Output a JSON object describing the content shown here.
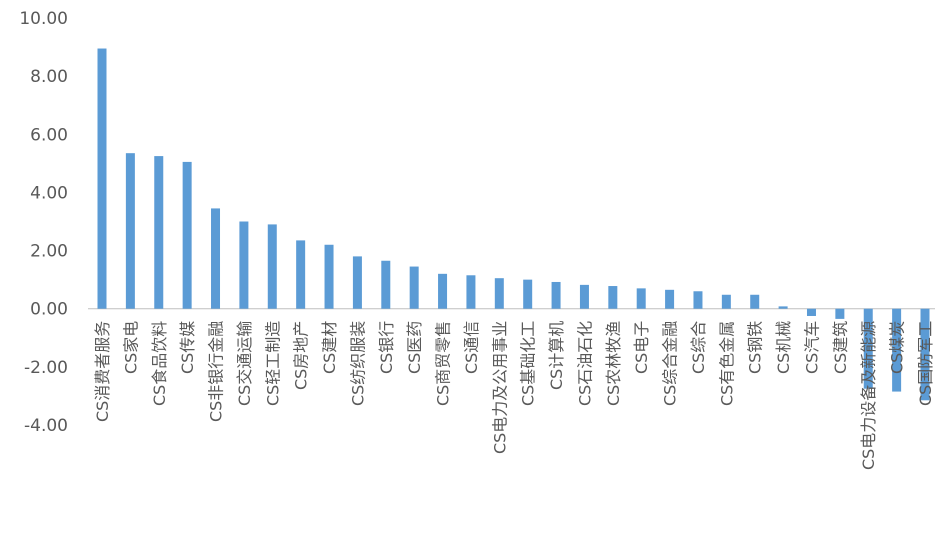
{
  "chart_data": {
    "type": "bar",
    "title": "",
    "xlabel": "",
    "ylabel": "",
    "ylim": [
      -4,
      10
    ],
    "y_ticks": [
      "10.00",
      "8.00",
      "6.00",
      "4.00",
      "2.00",
      "0.00",
      "-2.00",
      "-4.00"
    ],
    "y_tick_values": [
      10,
      8,
      6,
      4,
      2,
      0,
      -2,
      -4
    ],
    "grid": false,
    "legend": "none",
    "bar_color": "#5B9BD5",
    "categories": [
      "CS消费者服务",
      "CS家电",
      "CS食品饮料",
      "CS传媒",
      "CS非银行金融",
      "CS交通运输",
      "CS轻工制造",
      "CS房地产",
      "CS建材",
      "CS纺织服装",
      "CS银行",
      "CS医药",
      "CS商贸零售",
      "CS通信",
      "CS电力及公用事业",
      "CS基础化工",
      "CS计算机",
      "CS石油石化",
      "CS农林牧渔",
      "CS电子",
      "CS综合金融",
      "CS综合",
      "CS有色金属",
      "CS钢铁",
      "CS机械",
      "CS汽车",
      "CS建筑",
      "CS电力设备及新能源",
      "CS煤炭",
      "CS国防军工"
    ],
    "values": [
      8.95,
      5.35,
      5.25,
      5.05,
      3.45,
      3.0,
      2.9,
      2.35,
      2.2,
      1.8,
      1.65,
      1.45,
      1.2,
      1.15,
      1.05,
      1.0,
      0.92,
      0.82,
      0.78,
      0.7,
      0.65,
      0.6,
      0.48,
      0.48,
      0.08,
      -0.25,
      -0.35,
      -2.75,
      -2.85,
      -3.15
    ]
  }
}
